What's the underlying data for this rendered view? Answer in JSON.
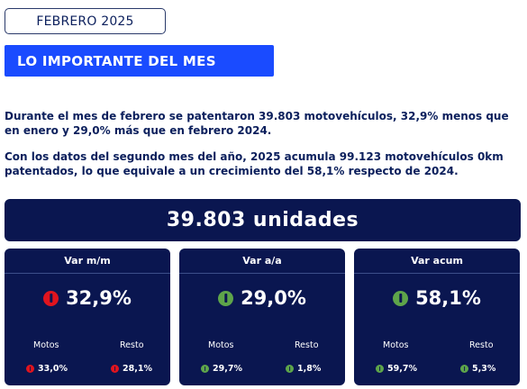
{
  "header": {
    "month": "FEBRERO 2025"
  },
  "section": {
    "title": "LO IMPORTANTE DEL MES"
  },
  "text": {
    "p1": "Durante el mes de febrero se patentaron 39.803 motovehículos, 32,9% menos que en enero y 29,0% más que en febrero 2024.",
    "p2": "Con los datos del segundo mes del año, 2025 acumula 99.123 motovehículos 0km patentados, lo que equivale a un crecimiento del 58,1% respecto de 2024."
  },
  "total": {
    "label": "39.803 unidades"
  },
  "colors": {
    "navy": "#0a1650",
    "accent_blue": "#1a4bff",
    "down_red": "#e0141e",
    "up_green": "#5ea54a"
  },
  "cards": [
    {
      "title": "Var m/m",
      "value": "32,9%",
      "trend": "down",
      "motos_label": "Motos",
      "motos_value": "33,0%",
      "motos_trend": "down",
      "resto_label": "Resto",
      "resto_value": "28,1%",
      "resto_trend": "down"
    },
    {
      "title": "Var a/a",
      "value": "29,0%",
      "trend": "up",
      "motos_label": "Motos",
      "motos_value": "29,7%",
      "motos_trend": "up",
      "resto_label": "Resto",
      "resto_value": "1,8%",
      "resto_trend": "up"
    },
    {
      "title": "Var acum",
      "value": "58,1%",
      "trend": "up",
      "motos_label": "Motos",
      "motos_value": "59,7%",
      "motos_trend": "up",
      "resto_label": "Resto",
      "resto_value": "5,3%",
      "resto_trend": "up"
    }
  ]
}
